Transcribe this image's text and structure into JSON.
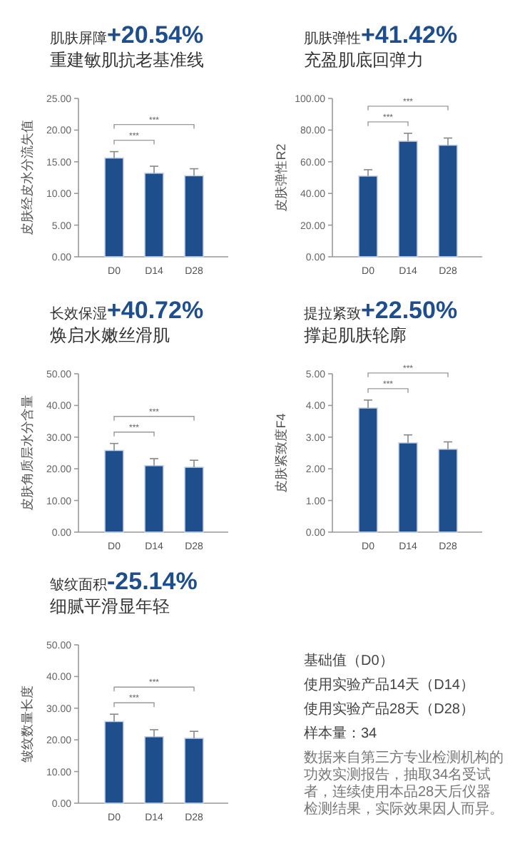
{
  "chart_data": [
    {
      "type": "bar",
      "title": "肌肤屏障+20.54%",
      "subtitle": "重建敏肌抗老基准线",
      "ylabel": "皮肤经皮水分流失值",
      "categories": [
        "D0",
        "D14",
        "D28"
      ],
      "series": [
        {
          "color": "#1f4e8c",
          "values": [
            15.6,
            13.2,
            12.8
          ],
          "errors": [
            [
              15.6,
              16.6
            ],
            [
              13.2,
              14.3
            ],
            [
              12.8,
              13.9
            ]
          ]
        }
      ],
      "ylim": [
        0,
        25
      ],
      "yticks": [
        {
          "value": 0,
          "label": "0.00"
        },
        {
          "value": 5,
          "label": "5.00"
        },
        {
          "value": 10,
          "label": "10.00"
        },
        {
          "value": 15,
          "label": "15.00"
        },
        {
          "value": 20,
          "label": "20.00"
        },
        {
          "value": 25,
          "label": "25.00"
        }
      ],
      "annotations": [
        "***",
        "***"
      ]
    },
    {
      "type": "bar",
      "title": "肌肤弹性+41.42%",
      "subtitle": "充盈肌底回弹力",
      "ylabel": "皮肤弹性R2",
      "categories": [
        "D0",
        "D14",
        "D28"
      ],
      "series": [
        {
          "color": "#1f4e8c",
          "values": [
            51,
            73,
            70.5
          ],
          "errors": [
            [
              51,
              55
            ],
            [
              73,
              78
            ],
            [
              70.5,
              75
            ]
          ]
        }
      ],
      "ylim": [
        0,
        100
      ],
      "yticks": [
        {
          "value": 0,
          "label": "0.00"
        },
        {
          "value": 20,
          "label": "20.00"
        },
        {
          "value": 40,
          "label": "40.00"
        },
        {
          "value": 60,
          "label": "60.00"
        },
        {
          "value": 80,
          "label": "80.00"
        },
        {
          "value": 100,
          "label": "100.00"
        }
      ],
      "annotations": [
        "***",
        "***"
      ]
    },
    {
      "type": "bar",
      "title": "长效保湿+40.72%",
      "subtitle": "焕启水嫩丝滑肌",
      "ylabel": "皮肤角质层水分含量",
      "categories": [
        "D0",
        "D14",
        "D28"
      ],
      "series": [
        {
          "color": "#1f4e8c",
          "values": [
            25.8,
            21,
            20.5
          ],
          "errors": [
            [
              25.8,
              28
            ],
            [
              21,
              23.2
            ],
            [
              20.5,
              22.7
            ]
          ]
        }
      ],
      "ylim": [
        0,
        50
      ],
      "yticks": [
        {
          "value": 0,
          "label": "0.00"
        },
        {
          "value": 10,
          "label": "10.00"
        },
        {
          "value": 20,
          "label": "20.00"
        },
        {
          "value": 30,
          "label": "30.00"
        },
        {
          "value": 40,
          "label": "40.00"
        },
        {
          "value": 50,
          "label": "50.00"
        }
      ],
      "annotations": [
        "***",
        "***"
      ]
    },
    {
      "type": "bar",
      "title": "提拉紧致+22.50%",
      "subtitle": "撑起肌肤轮廓",
      "ylabel": "皮肤紧致度F4",
      "categories": [
        "D0",
        "D14",
        "D28"
      ],
      "series": [
        {
          "color": "#1f4e8c",
          "values": [
            3.92,
            2.82,
            2.62
          ],
          "errors": [
            [
              3.92,
              4.17
            ],
            [
              2.82,
              3.07
            ],
            [
              2.62,
              2.85
            ]
          ]
        }
      ],
      "ylim": [
        0,
        5
      ],
      "yticks": [
        {
          "value": 0,
          "label": "0.00"
        },
        {
          "value": 1,
          "label": "1.00"
        },
        {
          "value": 2,
          "label": "2.00"
        },
        {
          "value": 3,
          "label": "3.00"
        },
        {
          "value": 4,
          "label": "4.00"
        },
        {
          "value": 5,
          "label": "5.00"
        }
      ],
      "annotations": [
        "***",
        "***"
      ]
    },
    {
      "type": "bar",
      "title": "皱纹面积-25.14%",
      "subtitle": "细腻平滑显年轻",
      "ylabel": "皱纹数量长度",
      "categories": [
        "D0",
        "D14",
        "D28"
      ],
      "series": [
        {
          "color": "#1f4e8c",
          "values": [
            25.8,
            21,
            20.5
          ],
          "errors": [
            [
              25.8,
              28.1
            ],
            [
              21,
              23.2
            ],
            [
              20.5,
              22.7
            ]
          ]
        }
      ],
      "ylim": [
        0,
        50
      ],
      "yticks": [
        {
          "value": 0,
          "label": "0.00"
        },
        {
          "value": 10,
          "label": "10.00"
        },
        {
          "value": 20,
          "label": "20.00"
        },
        {
          "value": 30,
          "label": "30.00"
        },
        {
          "value": 40,
          "label": "40.00"
        },
        {
          "value": 50,
          "label": "50.00"
        }
      ],
      "annotations": [
        "***",
        "***"
      ]
    },
    {
      "type": "other",
      "annotations": [
        "基础值（D0）",
        "使用实验产品14天（D14）",
        "使用实验产品28天（D28）",
        "样本量：34",
        "数据来自第三方专业检测机构的功效实测报告，抽取34名受试者，连续使用本品28天后仪器检测结果，实际效果因人而异。"
      ]
    }
  ]
}
